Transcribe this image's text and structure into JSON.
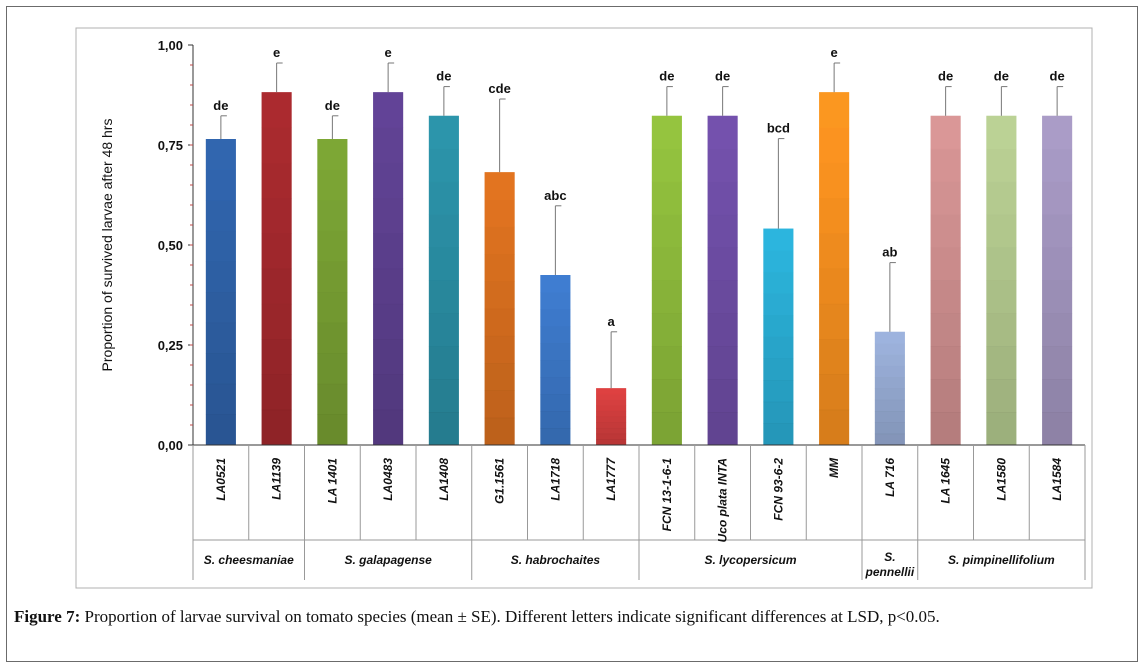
{
  "caption": {
    "label": "Figure 7:",
    "text": " Proportion of larvae survival on tomato species (mean ± SE). Different letters indicate significant differences at LSD, p<0.05."
  },
  "chart_data": {
    "type": "bar",
    "title": "",
    "xlabel": "",
    "ylabel": "Proportion of survived larvae after 48 hrs",
    "ylim": [
      0,
      1
    ],
    "yticks": [
      0,
      0.25,
      0.5,
      0.75,
      1
    ],
    "ytick_labels": [
      "0,00",
      "0,25",
      "0,50",
      "0,75",
      "1,00"
    ],
    "grid": false,
    "categories": [
      "LA0521",
      "LA1139",
      "LA 1401",
      "LA0483",
      "LA1408",
      "G1.1561",
      "LA1718",
      "LA1777",
      "FCN 13-1-6-1",
      "Uco plata INTA",
      "FCN 93-6-2",
      "MM",
      "LA 716",
      "LA 1645",
      "LA1580",
      "LA1584"
    ],
    "values": [
      0.765,
      0.882,
      0.765,
      0.882,
      0.823,
      0.682,
      0.425,
      0.142,
      0.823,
      0.823,
      0.541,
      0.882,
      0.283,
      0.823,
      0.823,
      0.823
    ],
    "errors": [
      0.058,
      0.073,
      0.058,
      0.073,
      0.073,
      0.183,
      0.173,
      0.141,
      0.073,
      0.073,
      0.225,
      0.073,
      0.173,
      0.073,
      0.073,
      0.073
    ],
    "significance_letters": [
      "de",
      "e",
      "de",
      "e",
      "de",
      "cde",
      "abc",
      "a",
      "de",
      "de",
      "bcd",
      "e",
      "ab",
      "de",
      "de",
      "de"
    ],
    "colors": [
      "#2f62a8",
      "#a4292e",
      "#78a033",
      "#5e4190",
      "#2a8fa4",
      "#d9701f",
      "#3c78c8",
      "#d43f3f",
      "#8fbc3c",
      "#6f4ea6",
      "#2aaed4",
      "#f7901f",
      "#97acd4",
      "#d09090",
      "#b3c98f",
      "#a396bf"
    ],
    "groups": [
      {
        "name": "S. cheesmaniae",
        "count": 2
      },
      {
        "name": "S. galapagense",
        "count": 3
      },
      {
        "name": "S. habrochaites",
        "count": 3
      },
      {
        "name": "S. lycopersicum",
        "count": 4
      },
      {
        "name": "S. pennellii",
        "lines": [
          "S.",
          "pennellii"
        ],
        "count": 1
      },
      {
        "name": "S. pimpinellifolium",
        "count": 3
      }
    ]
  }
}
